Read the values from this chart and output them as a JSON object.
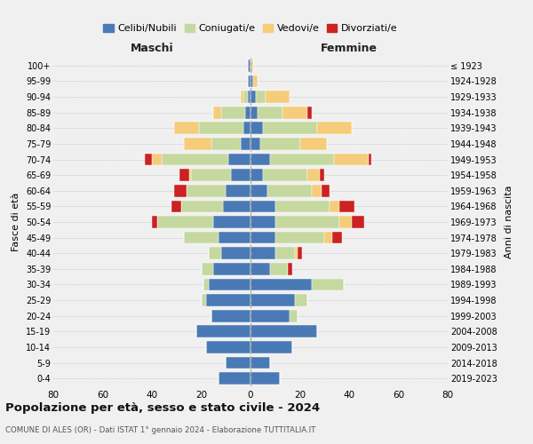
{
  "age_groups": [
    "0-4",
    "5-9",
    "10-14",
    "15-19",
    "20-24",
    "25-29",
    "30-34",
    "35-39",
    "40-44",
    "45-49",
    "50-54",
    "55-59",
    "60-64",
    "65-69",
    "70-74",
    "75-79",
    "80-84",
    "85-89",
    "90-94",
    "95-99",
    "100+"
  ],
  "birth_years": [
    "2019-2023",
    "2014-2018",
    "2009-2013",
    "2004-2008",
    "1999-2003",
    "1994-1998",
    "1989-1993",
    "1984-1988",
    "1979-1983",
    "1974-1978",
    "1969-1973",
    "1964-1968",
    "1959-1963",
    "1954-1958",
    "1949-1953",
    "1944-1948",
    "1939-1943",
    "1934-1938",
    "1929-1933",
    "1924-1928",
    "≤ 1923"
  ],
  "colors": {
    "celibi": "#4a7ab5",
    "coniugati": "#c5d8a0",
    "vedovi": "#f5cc7a",
    "divorziati": "#cc2222"
  },
  "maschi": {
    "celibi": [
      13,
      10,
      18,
      22,
      16,
      18,
      17,
      15,
      12,
      13,
      15,
      11,
      10,
      8,
      9,
      4,
      3,
      2,
      1,
      1,
      1
    ],
    "coniugati": [
      0,
      0,
      0,
      0,
      0,
      2,
      2,
      5,
      5,
      14,
      23,
      17,
      16,
      16,
      27,
      12,
      18,
      10,
      2,
      0,
      0
    ],
    "vedovi": [
      0,
      0,
      0,
      0,
      0,
      0,
      0,
      0,
      0,
      0,
      0,
      0,
      0,
      1,
      4,
      11,
      10,
      3,
      1,
      0,
      0
    ],
    "divorziati": [
      0,
      0,
      0,
      0,
      0,
      0,
      0,
      0,
      0,
      0,
      2,
      4,
      5,
      4,
      3,
      0,
      0,
      0,
      0,
      0,
      0
    ]
  },
  "femmine": {
    "celibi": [
      12,
      8,
      17,
      27,
      16,
      18,
      25,
      8,
      10,
      10,
      10,
      10,
      7,
      5,
      8,
      4,
      5,
      3,
      2,
      1,
      0
    ],
    "coniugati": [
      0,
      0,
      0,
      0,
      3,
      5,
      13,
      7,
      8,
      20,
      26,
      22,
      18,
      18,
      26,
      16,
      22,
      10,
      4,
      0,
      0
    ],
    "vedovi": [
      0,
      0,
      0,
      0,
      0,
      0,
      0,
      0,
      1,
      3,
      5,
      4,
      4,
      5,
      14,
      11,
      14,
      10,
      10,
      2,
      1
    ],
    "divorziati": [
      0,
      0,
      0,
      0,
      0,
      0,
      0,
      2,
      2,
      4,
      5,
      6,
      3,
      2,
      1,
      0,
      0,
      2,
      0,
      0,
      0
    ]
  },
  "title": "Popolazione per età, sesso e stato civile - 2024",
  "subtitle": "COMUNE DI ALES (OR) - Dati ISTAT 1° gennaio 2024 - Elaborazione TUTTITALIA.IT",
  "xlabel_left": "Maschi",
  "xlabel_right": "Femmine",
  "ylabel_left": "Fasce di età",
  "ylabel_right": "Anni di nascita",
  "xlim": 80,
  "legend_labels": [
    "Celibi/Nubili",
    "Coniugati/e",
    "Vedovi/e",
    "Divorziati/e"
  ],
  "bg_color": "#f0f0f0"
}
